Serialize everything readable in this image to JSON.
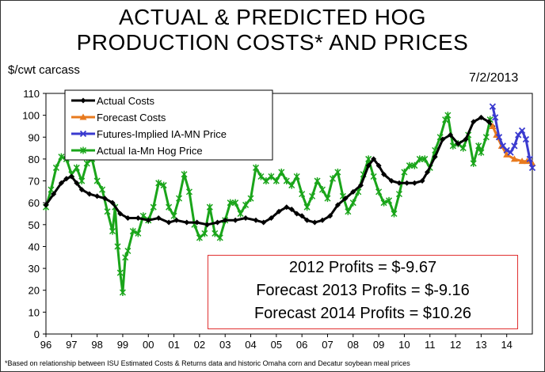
{
  "header": {
    "title_line1": "ACTUAL & PREDICTED HOG",
    "title_line2": "PRODUCTION COSTS* AND PRICES",
    "ylabel": "$/cwt carcass",
    "date": "7/2/2013"
  },
  "profits": {
    "p2012": "2012 Profits = $-9.67",
    "p2013": "Forecast 2013 Profits = $-9.16",
    "p2014": "Forecast 2014 Profits = $10.26"
  },
  "footnote": "*Based on relationship between ISU Estimated Costs & Returns data and historic Omaha corn and Decatur soybean meal prices",
  "chart_data": {
    "type": "line",
    "ylim": [
      0,
      110
    ],
    "yticks": [
      "0",
      "10",
      "20",
      "30",
      "40",
      "50",
      "60",
      "70",
      "80",
      "90",
      "100",
      "110"
    ],
    "xlim": [
      1996,
      2015
    ],
    "xticks": [
      "96",
      "97",
      "98",
      "99",
      "00",
      "01",
      "02",
      "03",
      "04",
      "05",
      "06",
      "07",
      "08",
      "09",
      "10",
      "11",
      "12",
      "13",
      "14"
    ],
    "legend_position": "top-left",
    "series": [
      {
        "name": "Actual Costs",
        "color": "#000000",
        "marker": "diamond",
        "points": [
          [
            1996.0,
            59
          ],
          [
            1996.3,
            64
          ],
          [
            1996.6,
            69
          ],
          [
            1996.8,
            71
          ],
          [
            1997.0,
            72
          ],
          [
            1997.2,
            69
          ],
          [
            1997.4,
            66
          ],
          [
            1997.7,
            64
          ],
          [
            1998.0,
            63
          ],
          [
            1998.3,
            62
          ],
          [
            1998.6,
            60
          ],
          [
            1998.9,
            55
          ],
          [
            1999.2,
            53
          ],
          [
            1999.6,
            53
          ],
          [
            2000.0,
            52
          ],
          [
            2000.4,
            53
          ],
          [
            2000.8,
            51
          ],
          [
            2001.1,
            52
          ],
          [
            2001.5,
            51
          ],
          [
            2001.9,
            51
          ],
          [
            2002.3,
            50
          ],
          [
            2002.7,
            51
          ],
          [
            2003.0,
            52
          ],
          [
            2003.4,
            52
          ],
          [
            2003.8,
            53
          ],
          [
            2004.2,
            52
          ],
          [
            2004.5,
            51
          ],
          [
            2004.8,
            53
          ],
          [
            2005.1,
            56
          ],
          [
            2005.4,
            58
          ],
          [
            2005.6,
            57
          ],
          [
            2005.8,
            55
          ],
          [
            2006.0,
            54
          ],
          [
            2006.2,
            52
          ],
          [
            2006.5,
            51
          ],
          [
            2006.8,
            52
          ],
          [
            2007.1,
            54
          ],
          [
            2007.4,
            59
          ],
          [
            2007.7,
            62
          ],
          [
            2008.0,
            65
          ],
          [
            2008.3,
            68
          ],
          [
            2008.6,
            77
          ],
          [
            2008.8,
            80
          ],
          [
            2009.0,
            77
          ],
          [
            2009.2,
            73
          ],
          [
            2009.5,
            70
          ],
          [
            2009.8,
            69
          ],
          [
            2010.1,
            69
          ],
          [
            2010.4,
            69
          ],
          [
            2010.7,
            70
          ],
          [
            2010.9,
            74
          ],
          [
            2011.2,
            81
          ],
          [
            2011.5,
            89
          ],
          [
            2011.8,
            91
          ],
          [
            2012.1,
            87
          ],
          [
            2012.4,
            89
          ],
          [
            2012.7,
            97
          ],
          [
            2013.0,
            99
          ],
          [
            2013.3,
            97
          ],
          [
            2013.45,
            95
          ]
        ]
      },
      {
        "name": "Forecast Costs",
        "color": "#e87a1e",
        "marker": "triangle",
        "points": [
          [
            2013.45,
            95
          ],
          [
            2013.6,
            91
          ],
          [
            2013.8,
            86
          ],
          [
            2014.0,
            82
          ],
          [
            2014.3,
            80
          ],
          [
            2014.6,
            79
          ],
          [
            2014.8,
            79
          ],
          [
            2015.0,
            78
          ]
        ]
      },
      {
        "name": "Futures-Implied IA-MN Price",
        "color": "#3a3acf",
        "marker": "x",
        "points": [
          [
            2013.45,
            104
          ],
          [
            2013.55,
            99
          ],
          [
            2013.7,
            90
          ],
          [
            2013.85,
            86
          ],
          [
            2014.0,
            84
          ],
          [
            2014.15,
            83
          ],
          [
            2014.3,
            86
          ],
          [
            2014.45,
            91
          ],
          [
            2014.6,
            93
          ],
          [
            2014.75,
            89
          ],
          [
            2014.9,
            80
          ],
          [
            2015.0,
            76
          ]
        ]
      },
      {
        "name": "Actual Ia-Mn Hog Price",
        "color": "#1aa51a",
        "marker": "asterisk",
        "points": [
          [
            1996.0,
            58
          ],
          [
            1996.2,
            66
          ],
          [
            1996.4,
            76
          ],
          [
            1996.6,
            81
          ],
          [
            1996.8,
            80
          ],
          [
            1997.0,
            73
          ],
          [
            1997.2,
            76
          ],
          [
            1997.4,
            70
          ],
          [
            1997.6,
            78
          ],
          [
            1997.8,
            80
          ],
          [
            1998.0,
            70
          ],
          [
            1998.2,
            66
          ],
          [
            1998.4,
            56
          ],
          [
            1998.6,
            47
          ],
          [
            1998.7,
            58
          ],
          [
            1998.8,
            40
          ],
          [
            1998.9,
            28
          ],
          [
            1999.0,
            19
          ],
          [
            1999.1,
            35
          ],
          [
            1999.2,
            38
          ],
          [
            1999.4,
            47
          ],
          [
            1999.6,
            46
          ],
          [
            1999.8,
            54
          ],
          [
            2000.0,
            52
          ],
          [
            2000.2,
            58
          ],
          [
            2000.4,
            69
          ],
          [
            2000.6,
            68
          ],
          [
            2000.8,
            58
          ],
          [
            2001.0,
            54
          ],
          [
            2001.2,
            62
          ],
          [
            2001.4,
            73
          ],
          [
            2001.6,
            65
          ],
          [
            2001.8,
            50
          ],
          [
            2002.0,
            44
          ],
          [
            2002.2,
            46
          ],
          [
            2002.4,
            58
          ],
          [
            2002.6,
            46
          ],
          [
            2002.8,
            44
          ],
          [
            2003.0,
            52
          ],
          [
            2003.2,
            60
          ],
          [
            2003.4,
            60
          ],
          [
            2003.6,
            55
          ],
          [
            2003.8,
            59
          ],
          [
            2004.0,
            62
          ],
          [
            2004.2,
            76
          ],
          [
            2004.4,
            72
          ],
          [
            2004.6,
            70
          ],
          [
            2004.8,
            72
          ],
          [
            2005.0,
            70
          ],
          [
            2005.2,
            74
          ],
          [
            2005.4,
            70
          ],
          [
            2005.6,
            68
          ],
          [
            2005.8,
            72
          ],
          [
            2006.0,
            64
          ],
          [
            2006.2,
            58
          ],
          [
            2006.4,
            63
          ],
          [
            2006.6,
            70
          ],
          [
            2006.8,
            66
          ],
          [
            2007.0,
            62
          ],
          [
            2007.2,
            71
          ],
          [
            2007.4,
            74
          ],
          [
            2007.6,
            63
          ],
          [
            2007.8,
            56
          ],
          [
            2008.0,
            60
          ],
          [
            2008.2,
            65
          ],
          [
            2008.4,
            73
          ],
          [
            2008.6,
            80
          ],
          [
            2008.8,
            72
          ],
          [
            2009.0,
            65
          ],
          [
            2009.2,
            60
          ],
          [
            2009.4,
            61
          ],
          [
            2009.6,
            55
          ],
          [
            2009.8,
            64
          ],
          [
            2010.0,
            74
          ],
          [
            2010.2,
            77
          ],
          [
            2010.4,
            77
          ],
          [
            2010.6,
            80
          ],
          [
            2010.8,
            80
          ],
          [
            2011.0,
            76
          ],
          [
            2011.2,
            84
          ],
          [
            2011.4,
            90
          ],
          [
            2011.6,
            98
          ],
          [
            2011.7,
            100
          ],
          [
            2011.9,
            86
          ],
          [
            2012.1,
            87
          ],
          [
            2012.3,
            85
          ],
          [
            2012.5,
            91
          ],
          [
            2012.7,
            78
          ],
          [
            2012.9,
            86
          ],
          [
            2013.0,
            83
          ],
          [
            2013.2,
            90
          ],
          [
            2013.35,
            98
          ]
        ]
      }
    ]
  }
}
